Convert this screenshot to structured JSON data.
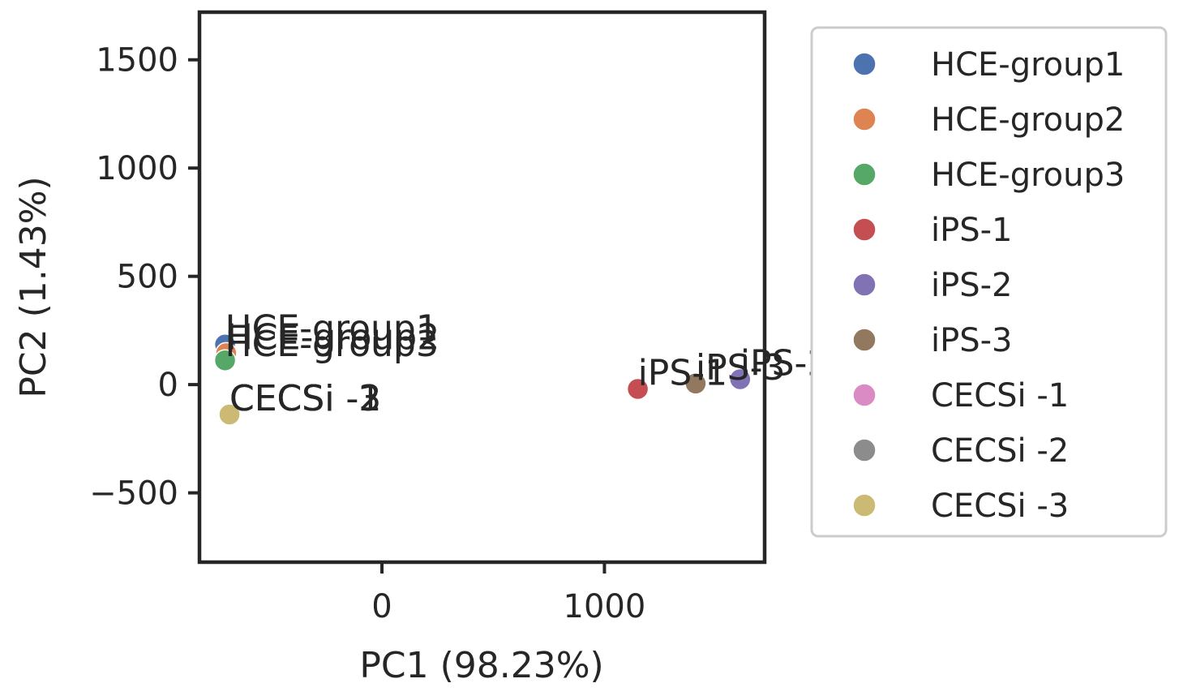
{
  "chart_data": {
    "type": "scatter",
    "title": "",
    "xlabel": "PC1 (98.23%)",
    "ylabel": "PC2 (1.43%)",
    "xlim": [
      -820,
      1720
    ],
    "ylim": [
      -820,
      1720
    ],
    "xticks": [
      0,
      1000
    ],
    "yticks": [
      -500,
      0,
      500,
      1000,
      1500
    ],
    "grid": false,
    "legend": "outside-right",
    "series": [
      {
        "name": "HCE-group1",
        "color": "#4c72b0",
        "x": -705,
        "y": 185
      },
      {
        "name": "HCE-group2",
        "color": "#dd8452",
        "x": -700,
        "y": 145
      },
      {
        "name": "HCE-group3",
        "color": "#55a868",
        "x": -705,
        "y": 112
      },
      {
        "name": "iPS-1",
        "color": "#c44e52",
        "x": 1150,
        "y": -20
      },
      {
        "name": "iPS-2",
        "color": "#8172b3",
        "x": 1610,
        "y": 25
      },
      {
        "name": "iPS-3",
        "color": "#937860",
        "x": 1410,
        "y": 5
      },
      {
        "name": "CECSi -1",
        "color": "#da8bc3",
        "x": -685,
        "y": -138
      },
      {
        "name": "CECSi -2",
        "color": "#8c8c8c",
        "x": -685,
        "y": -138
      },
      {
        "name": "CECSi -3",
        "color": "#ccb974",
        "x": -685,
        "y": -138
      }
    ]
  }
}
